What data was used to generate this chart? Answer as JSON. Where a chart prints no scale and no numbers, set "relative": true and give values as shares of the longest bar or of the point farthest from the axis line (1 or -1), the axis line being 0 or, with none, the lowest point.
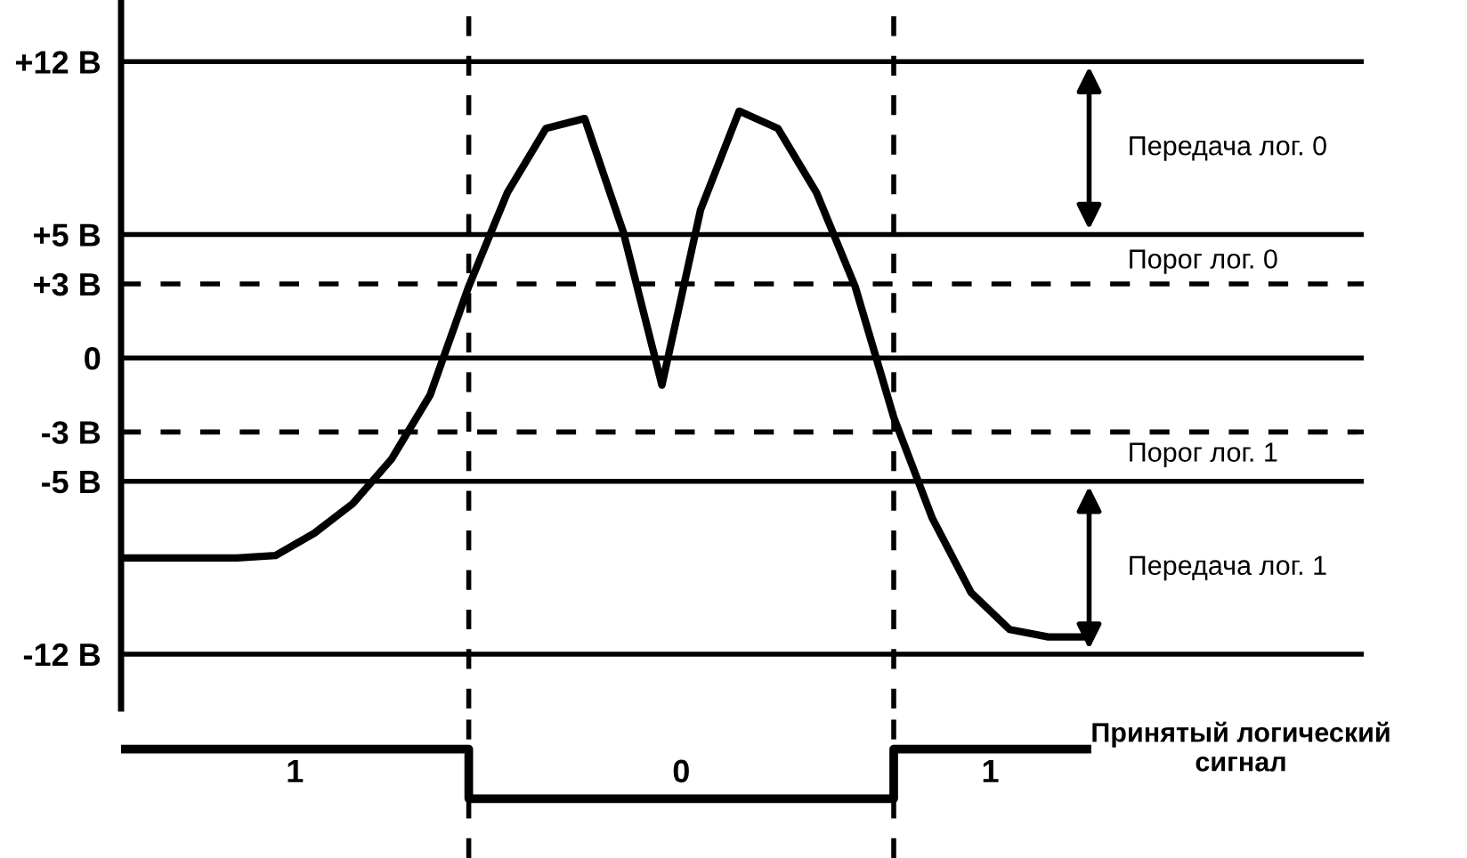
{
  "chart_data": [
    {
      "type": "line",
      "categories": [
        null,
        null,
        null,
        null,
        null,
        null,
        null,
        null,
        null,
        null,
        null,
        null,
        null,
        null,
        null,
        null,
        null,
        null,
        null,
        null,
        null,
        null,
        null,
        null,
        null,
        null
      ],
      "series": [
        {
          "color": "#000000",
          "values": [
            -8.1,
            -8.1,
            -8.1,
            -8.1,
            -8.0,
            -7.1,
            -5.9,
            -4.1,
            -1.5,
            2.9,
            6.7,
            9.3,
            9.7,
            5.1,
            -1.1,
            6.0,
            10.0,
            9.3,
            6.7,
            2.9,
            -2.4,
            -6.5,
            -9.5,
            -11.0,
            -11.3,
            -11.3
          ]
        }
      ],
      "ylim": [
        -14.2,
        14.5
      ],
      "yticks": [
        {
          "value": 12,
          "label": "+12 В"
        },
        {
          "value": 5,
          "label": "+5 В"
        },
        {
          "value": 3,
          "label": "+3 В"
        },
        0,
        {
          "value": -3,
          "label": "-3 В"
        },
        {
          "value": -5,
          "label": "-5 В"
        },
        {
          "value": -12,
          "label": "-12 В"
        }
      ],
      "tick_labels": "y",
      "ref_lines": [
        {
          "axis": "y",
          "value": 12,
          "line_style": "solid",
          "color": "#000000"
        },
        {
          "axis": "y",
          "value": 5,
          "line_style": "solid",
          "color": "#000000"
        },
        {
          "axis": "y",
          "value": 3,
          "line_style": "dashed",
          "color": "#000000",
          "label": "Порог лог. 0"
        },
        {
          "axis": "y",
          "value": 0,
          "line_style": "solid",
          "color": "#000000"
        },
        {
          "axis": "y",
          "value": -3,
          "line_style": "dashed",
          "color": "#000000",
          "label": "Порог лог. 1"
        },
        {
          "axis": "y",
          "value": -5,
          "line_style": "solid",
          "color": "#000000"
        },
        {
          "axis": "y",
          "value": -12,
          "line_style": "solid",
          "color": "#000000"
        }
      ],
      "annotations": [
        "Передача лог. 0",
        "Передача лог. 1"
      ]
    },
    {
      "type": "step",
      "relative": true,
      "categories": [
        null,
        null,
        null,
        null,
        null,
        null,
        null,
        null,
        null,
        null,
        null,
        null,
        null,
        null,
        null,
        null,
        null,
        null,
        null,
        null,
        null,
        null,
        null,
        null,
        null,
        null
      ],
      "series": [
        {
          "name": "Принятый логический\nсигнал",
          "color": "#000000",
          "values": [
            1,
            1,
            1,
            1,
            1,
            1,
            1,
            1,
            1,
            0,
            0,
            0,
            0,
            0,
            0,
            0,
            0,
            0,
            0,
            0,
            1,
            1,
            1,
            1,
            1,
            1
          ]
        }
      ],
      "tick_labels": false,
      "annotations": [
        "1",
        "0",
        "1"
      ]
    }
  ]
}
